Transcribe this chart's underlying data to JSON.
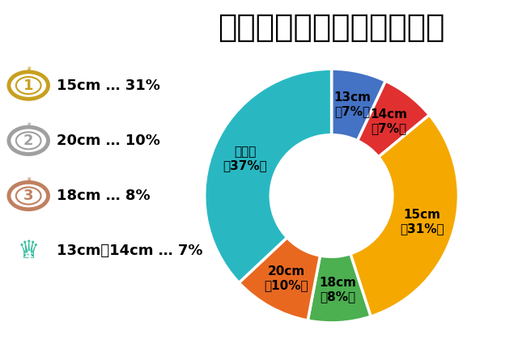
{
  "title": "女性の理想のペニスサイズ",
  "slices": [
    {
      "label": "13cm\n（7%）",
      "value": 7,
      "color": "#4472C4"
    },
    {
      "label": "14cm\n（7%）",
      "value": 7,
      "color": "#E03030"
    },
    {
      "label": "15cm\n（31%）",
      "value": 31,
      "color": "#F5A800"
    },
    {
      "label": "18cm\n（8%）",
      "value": 8,
      "color": "#4CAF50"
    },
    {
      "label": "20cm\n（10%）",
      "value": 10,
      "color": "#E86820"
    },
    {
      "label": "その他\n（37%）",
      "value": 37,
      "color": "#29B8C2"
    }
  ],
  "legend_items": [
    {
      "rank": 1,
      "text": "15cm … 31%",
      "color": "#C8A020"
    },
    {
      "rank": 2,
      "text": "20cm … 10%",
      "color": "#A0A0A0"
    },
    {
      "rank": 3,
      "text": "18cm … 8%",
      "color": "#C08060"
    },
    {
      "rank": 4,
      "text": "13cm、14cm … 7%",
      "color": "#3ABFA0"
    }
  ],
  "title_fontsize": 28,
  "label_fontsize": 11,
  "legend_fontsize": 13,
  "background_color": "#FFFFFF"
}
